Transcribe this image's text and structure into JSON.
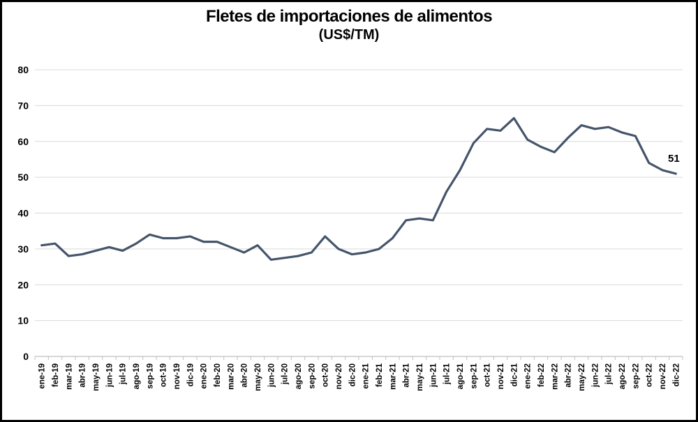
{
  "chart_data": {
    "type": "line",
    "title": "Fletes de importaciones de alimentos",
    "subtitle": "(US$/TM)",
    "categories": [
      "ene-19",
      "feb-19",
      "mar-19",
      "abr-19",
      "may-19",
      "jun-19",
      "jul-19",
      "ago-19",
      "sep-19",
      "oct-19",
      "nov-19",
      "dic-19",
      "ene-20",
      "feb-20",
      "mar-20",
      "abr-20",
      "may-20",
      "jun-20",
      "jul-20",
      "ago-20",
      "sep-20",
      "oct-20",
      "nov-20",
      "dic-20",
      "ene-21",
      "feb-21",
      "mar-21",
      "abr-21",
      "may-21",
      "jun-21",
      "jul-21",
      "ago-21",
      "sep-21",
      "oct-21",
      "nov-21",
      "dic-21",
      "ene-22",
      "feb-22",
      "mar-22",
      "abr-22",
      "may-22",
      "jun-22",
      "jul-22",
      "ago-22",
      "sep-22",
      "oct-22",
      "nov-22",
      "dic-22"
    ],
    "series": [
      {
        "name": "Fletes de importaciones de alimentos (US$/TM)",
        "values": [
          31,
          31.5,
          28,
          28.5,
          29.5,
          30.5,
          29.5,
          31.5,
          34,
          33,
          33,
          33.5,
          32,
          32,
          30.5,
          29,
          31,
          27,
          27.5,
          28,
          29,
          33.5,
          30,
          28.5,
          29,
          30,
          33,
          38,
          38.5,
          38,
          46,
          52,
          59.5,
          63.5,
          63,
          66.5,
          60.5,
          58.5,
          57,
          61,
          64.5,
          63.5,
          64,
          62.5,
          61.5,
          54,
          52,
          51
        ]
      }
    ],
    "last_point_label": "51",
    "ylim": [
      0,
      80
    ],
    "yticks": [
      0,
      10,
      20,
      30,
      40,
      50,
      60,
      70,
      80
    ],
    "ytick_labels": [
      "0",
      "10",
      "20",
      "30",
      "40",
      "50",
      "60",
      "70",
      "80"
    ],
    "grid": true,
    "legend": "none",
    "colors": {
      "line": "#44546A",
      "gridline": "#d9d9d9",
      "axis": "#bfbfbf",
      "text": "#000000",
      "background": "#ffffff",
      "frame_border": "#000000"
    }
  }
}
